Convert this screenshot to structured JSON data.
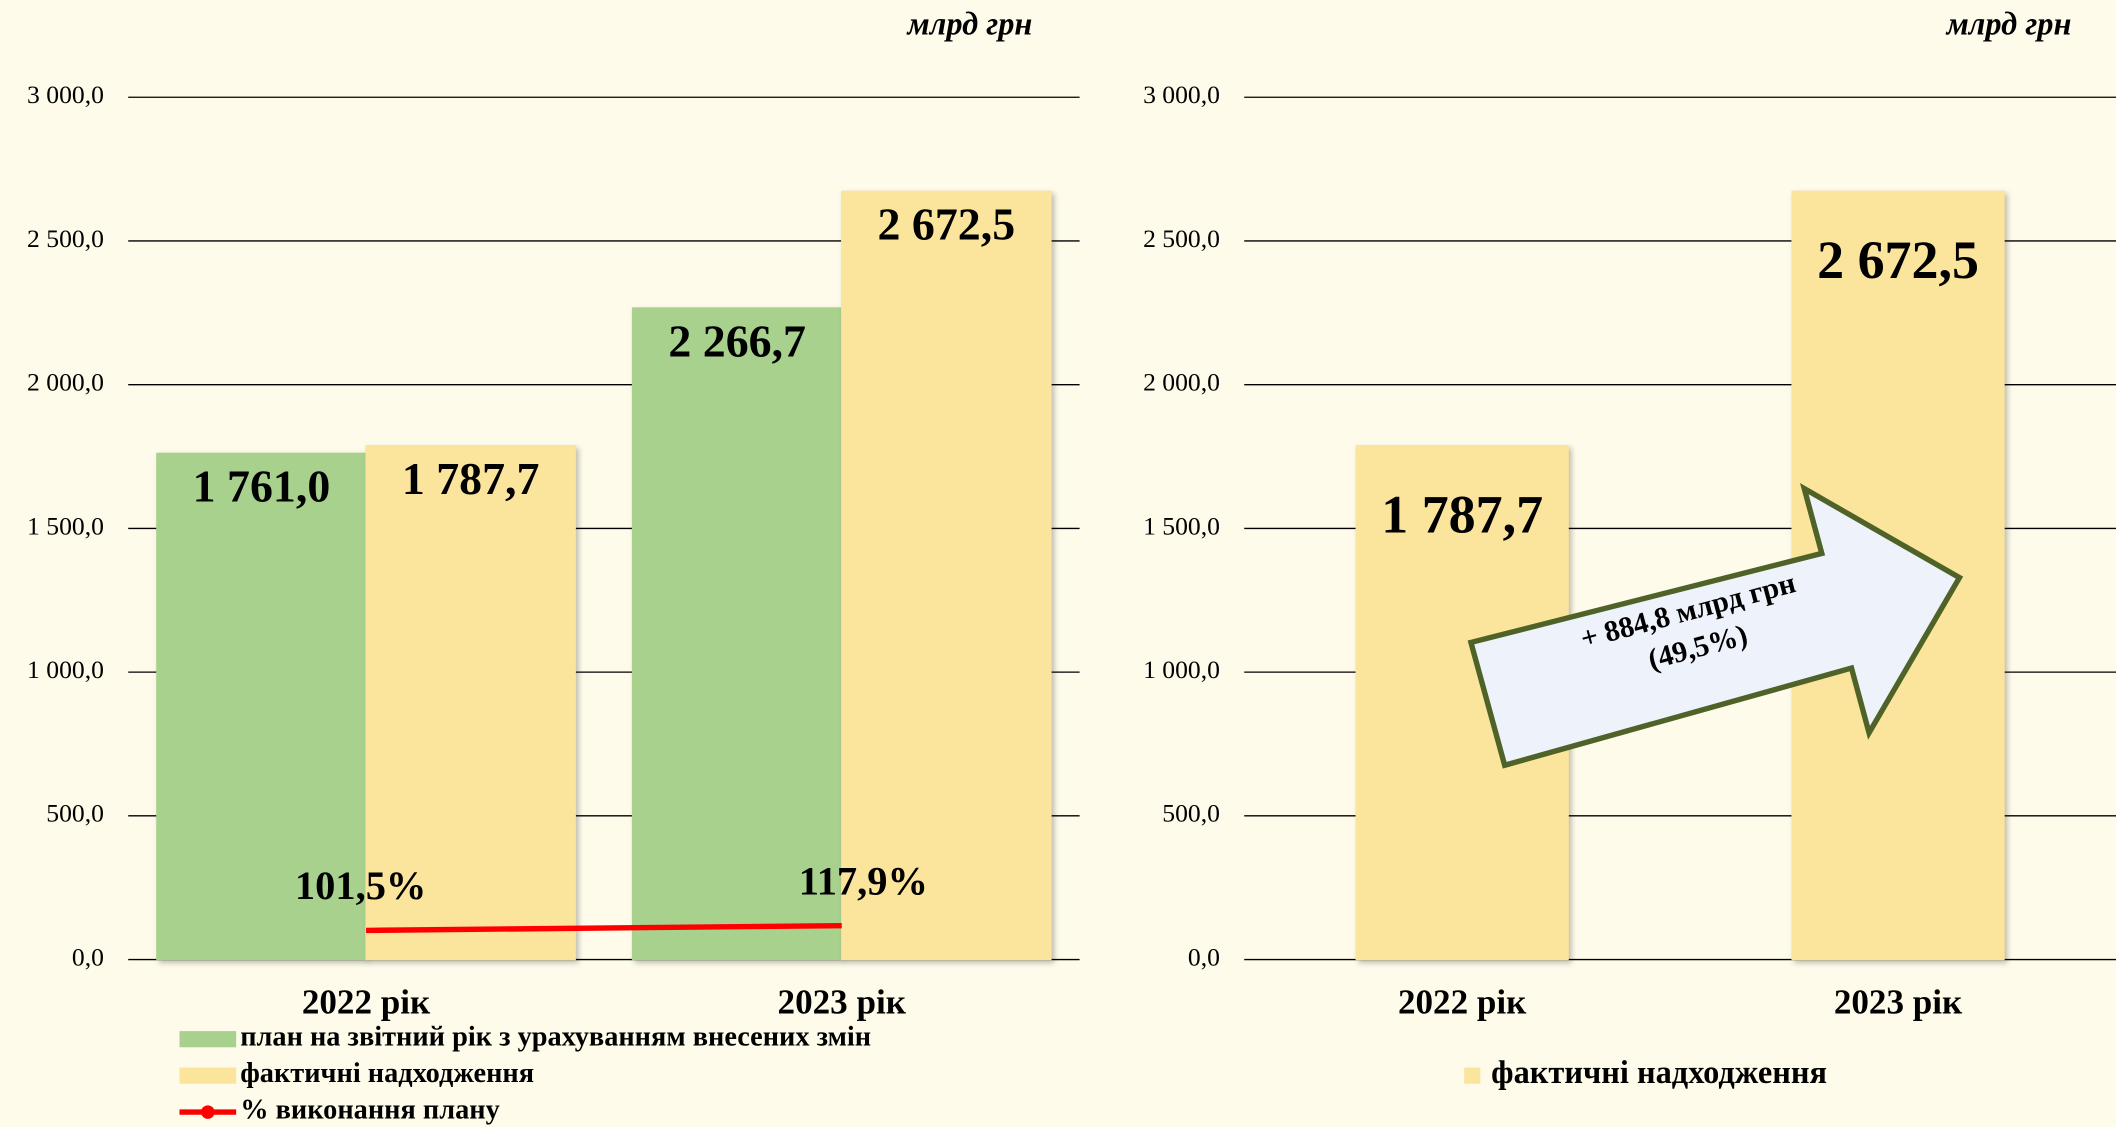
{
  "chart_data": [
    {
      "type": "bar",
      "unit": "млрд грн",
      "categories": [
        "2022 рік",
        "2023 рік"
      ],
      "series": [
        {
          "name": "план на звітний рік з урахуванням внесених змін",
          "color": "#a9d18e",
          "values": [
            1761.0,
            2266.7
          ],
          "value_labels": [
            "1 761,0",
            "2 266,7"
          ]
        },
        {
          "name": "фактичні надходження",
          "color": "#fbe49c",
          "values": [
            1787.7,
            2672.5
          ],
          "value_labels": [
            "1 787,7",
            "2 672,5"
          ]
        },
        {
          "name": "% виконання плану",
          "type": "line",
          "color": "#ff0000",
          "values": [
            101.5,
            117.9
          ],
          "value_labels": [
            "101,5%",
            "117,9%"
          ]
        }
      ],
      "ylim": [
        0,
        3000
      ],
      "yticks": [
        {
          "value": 0,
          "label": "0,0"
        },
        {
          "value": 500,
          "label": "500,0"
        },
        {
          "value": 1000,
          "label": "1 000,0"
        },
        {
          "value": 1500,
          "label": "1 500,0"
        },
        {
          "value": 2000,
          "label": "2 000,0"
        },
        {
          "value": 2500,
          "label": "2 500,0"
        },
        {
          "value": 3000,
          "label": "3 000,0"
        }
      ],
      "grid": true,
      "legend": "bottom"
    },
    {
      "type": "bar",
      "unit": "млрд грн",
      "categories": [
        "2022 рік",
        "2023 рік"
      ],
      "series": [
        {
          "name": "фактичні надходження",
          "color": "#fbe49c",
          "values": [
            1787.7,
            2672.5
          ],
          "value_labels": [
            "1 787,7",
            "2 672,5"
          ]
        }
      ],
      "annotations": [
        "+ 884,8 млрд грн",
        "(49,5%)"
      ],
      "ylim": [
        0,
        3000
      ],
      "yticks": [
        {
          "value": 0,
          "label": "0,0"
        },
        {
          "value": 500,
          "label": "500,0"
        },
        {
          "value": 1000,
          "label": "1 000,0"
        },
        {
          "value": 1500,
          "label": "1 500,0"
        },
        {
          "value": 2000,
          "label": "2 000,0"
        },
        {
          "value": 2500,
          "label": "2 500,0"
        },
        {
          "value": 3000,
          "label": "3 000,0"
        }
      ],
      "grid": true,
      "legend": "bottom"
    }
  ]
}
